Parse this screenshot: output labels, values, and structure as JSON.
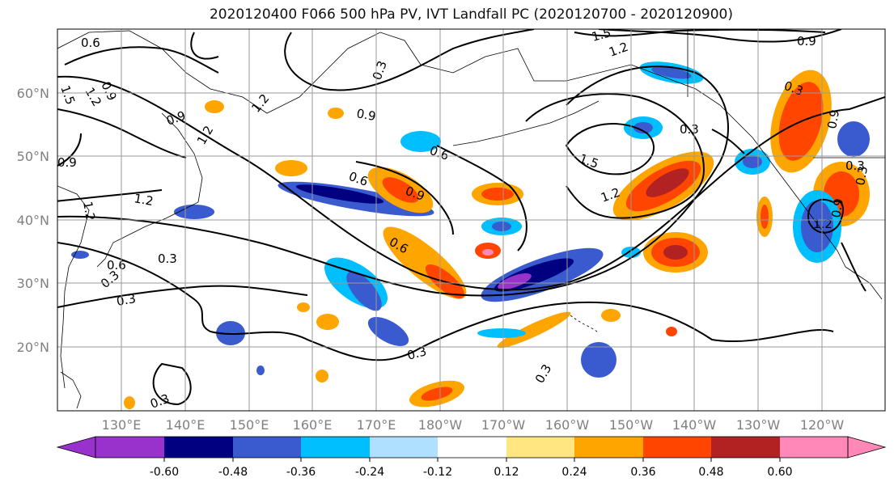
{
  "title": "2020120400 F066 500 hPa PV, IVT Landfall PC (2020120700 - 2020120900)",
  "map": {
    "lat_labels": [
      "60°N",
      "50°N",
      "40°N",
      "30°N",
      "20°N"
    ],
    "lon_labels": [
      "130°E",
      "140°E",
      "150°E",
      "160°E",
      "170°E",
      "180°W",
      "170°W",
      "160°W",
      "150°W",
      "140°W",
      "130°W",
      "120°W"
    ],
    "contour_labels": [
      "0.6",
      "0.9",
      "1.2",
      "1.5",
      "1.2",
      "0.6",
      "0.9",
      "0.6",
      "0.6",
      "0.9",
      "0.3",
      "0.3",
      "0.3",
      "0.3",
      "0.3",
      "1.5",
      "1.2",
      "1.2",
      "1.5",
      "0.9",
      "0.3",
      "0.9",
      "0.3",
      "0.9",
      "1.2",
      "0.6",
      "0.9",
      "1.2",
      "0.9",
      "0.3",
      "1.2",
      "1.2",
      "0.3",
      "0.3",
      "0.3"
    ]
  },
  "colorbar": {
    "ticks": [
      "-0.60",
      "-0.48",
      "-0.36",
      "-0.24",
      "-0.12",
      "0.12",
      "0.24",
      "0.36",
      "0.48",
      "0.60"
    ],
    "colors": [
      "#9932cc",
      "#000080",
      "#3a5bd0",
      "#00bfff",
      "#b0e0ff",
      "#ffffff",
      "#ffe680",
      "#ffa500",
      "#ff4500",
      "#b22222",
      "#ff88b8"
    ]
  }
}
